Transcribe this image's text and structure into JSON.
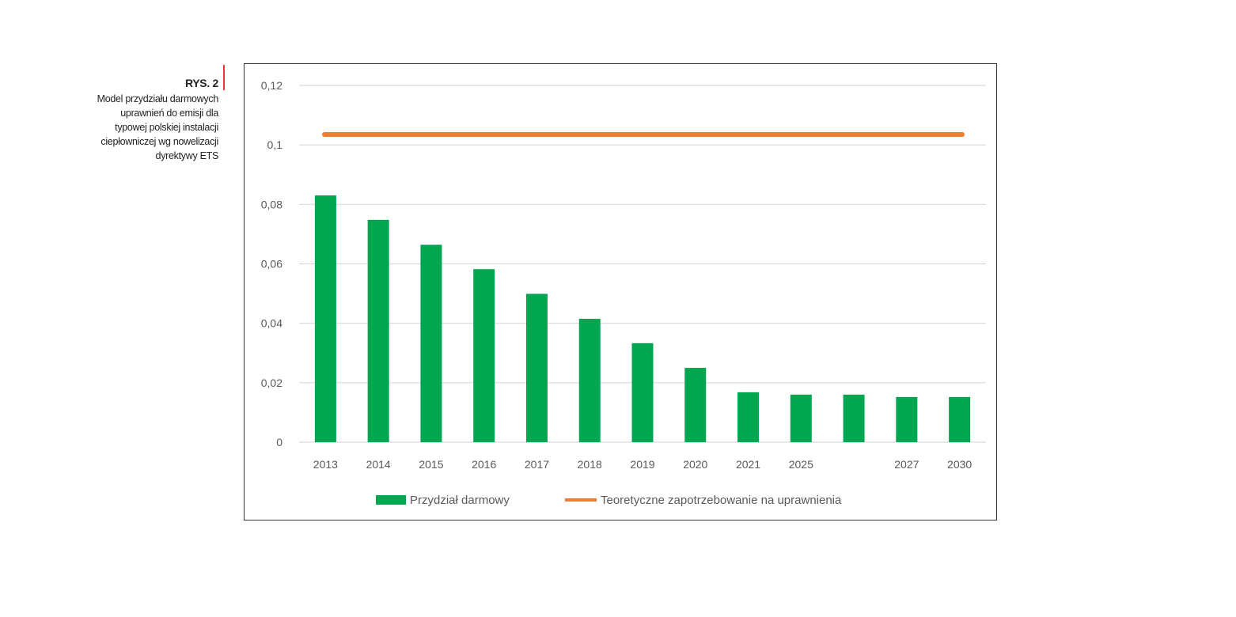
{
  "figure": {
    "label": "RYS. 2",
    "description": "Model przydziału darmowych uprawnień do emisji dla typowej polskiej instalacji ciepłowniczej wg nowelizacji dyrektywy ETS"
  },
  "colors": {
    "bar": "#00a650",
    "line": "#ed7d31",
    "grid": "#d9d9d9",
    "text": "#595959",
    "accent": "#e53935"
  },
  "chart_data": {
    "type": "bar",
    "categories": [
      "2013",
      "2014",
      "2015",
      "2016",
      "2017",
      "2018",
      "2019",
      "2020",
      "2021",
      "2025",
      "",
      "2027",
      "2030"
    ],
    "series": [
      {
        "name": "Przydział darmowy",
        "type": "bar",
        "values": [
          0.083,
          0.0748,
          0.0664,
          0.0582,
          0.0499,
          0.0415,
          0.0333,
          0.025,
          0.0168,
          0.016,
          0.016,
          0.0152,
          0.0152
        ]
      },
      {
        "name": "Teoretyczne zapotrzebowanie na uprawnienia",
        "type": "line",
        "values": [
          0.1035,
          0.1035,
          0.1035,
          0.1035,
          0.1035,
          0.1035,
          0.1035,
          0.1035,
          0.1035,
          0.1035,
          0.1035,
          0.1035,
          0.1035
        ]
      }
    ],
    "ylim": [
      0,
      0.12
    ],
    "yticks": [
      "0",
      "0,02",
      "0,04",
      "0,06",
      "0,08",
      "0,1",
      "0,12"
    ],
    "grid": true,
    "legend_position": "bottom"
  }
}
